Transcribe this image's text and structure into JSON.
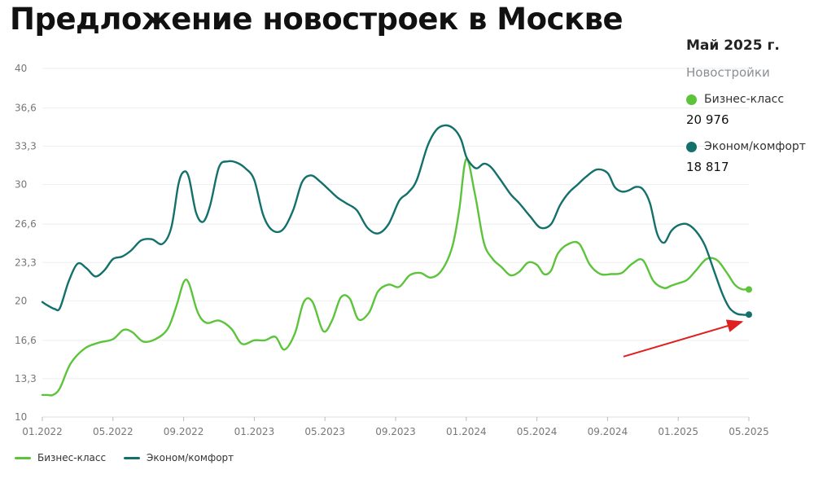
{
  "title": "Предложение новостроек в Москве",
  "side_panel": {
    "period": "Май 2025 г.",
    "subtitle": "Новостройки",
    "entries": [
      {
        "label": "Бизнес-класс",
        "value": "20 976"
      },
      {
        "label": "Эконом/комфорт",
        "value": "18 817"
      }
    ]
  },
  "colors": {
    "business": "#5cc43a",
    "economy": "#13706b",
    "arrow": "#e02020",
    "grid": "#eeeeee"
  },
  "chart_data": {
    "type": "line",
    "title": "Предложение новостроек в Москве",
    "xlabel": "",
    "ylabel": "",
    "x_ticks": [
      "01.2022",
      "05.2022",
      "09.2022",
      "01.2023",
      "05.2023",
      "09.2023",
      "01.2024",
      "05.2024",
      "09.2024",
      "01.2025",
      "05.2025"
    ],
    "x_tick_positions": [
      0,
      4,
      8,
      12,
      16,
      20,
      24,
      28,
      32,
      36,
      40
    ],
    "y_ticks": [
      "10",
      "13,3",
      "16,6",
      "20",
      "23,3",
      "26,6",
      "30",
      "33,3",
      "36,6",
      "40"
    ],
    "y_tick_values": [
      10,
      13.3,
      16.6,
      20,
      23.3,
      26.6,
      30,
      33.3,
      36.6,
      40
    ],
    "ylim": [
      10,
      40
    ],
    "xlim": [
      0,
      40
    ],
    "grid": "horizontal",
    "legend": "bottom-left",
    "series": [
      {
        "name": "Бизнес-класс",
        "color": "#5cc43a",
        "x": [
          0,
          0.3,
          0.6,
          1,
          1.6,
          2.4,
          3.2,
          4,
          4.6,
          5.1,
          5.7,
          6.4,
          7.1,
          7.6,
          8,
          8.3,
          8.8,
          9.3,
          10,
          10.7,
          11.3,
          12,
          12.6,
          13.2,
          13.7,
          14.3,
          14.8,
          15.3,
          15.9,
          16.4,
          16.9,
          17.4,
          17.9,
          18.5,
          19,
          19.6,
          20.2,
          20.8,
          21.4,
          22,
          22.6,
          23.2,
          23.6,
          24,
          24.5,
          25,
          25.5,
          26,
          26.5,
          27,
          27.5,
          28,
          28.4,
          28.8,
          29.2,
          29.8,
          30.4,
          31,
          31.6,
          32.2,
          32.8,
          33.4,
          34,
          34.6,
          35.2,
          35.6,
          36,
          36.5,
          37,
          37.6,
          38.2,
          38.8,
          39.2,
          39.6,
          40
        ],
        "y": [
          11.9,
          11.9,
          11.9,
          12.5,
          14.6,
          15.9,
          16.4,
          16.7,
          17.5,
          17.3,
          16.5,
          16.7,
          17.6,
          19.6,
          21.6,
          21.5,
          19.0,
          18.1,
          18.3,
          17.6,
          16.3,
          16.6,
          16.6,
          16.9,
          15.8,
          17.2,
          19.9,
          19.9,
          17.4,
          18.3,
          20.3,
          20.2,
          18.4,
          19.0,
          20.8,
          21.4,
          21.2,
          22.2,
          22.4,
          22.0,
          22.6,
          24.6,
          27.8,
          32.2,
          29.1,
          25.0,
          23.6,
          22.9,
          22.2,
          22.5,
          23.3,
          23.1,
          22.3,
          22.6,
          24.1,
          24.9,
          24.9,
          23.1,
          22.3,
          22.3,
          22.4,
          23.2,
          23.5,
          21.7,
          21.1,
          21.3,
          21.5,
          21.8,
          22.6,
          23.6,
          23.5,
          22.3,
          21.4,
          21.0,
          21.0
        ]
      },
      {
        "name": "Эконом/комфорт",
        "color": "#13706b",
        "x": [
          0,
          0.3,
          0.7,
          1,
          1.5,
          2,
          2.5,
          3,
          3.5,
          4,
          4.5,
          5,
          5.6,
          6.2,
          6.8,
          7.3,
          7.7,
          8,
          8.3,
          8.7,
          9.1,
          9.5,
          10,
          10.5,
          11,
          11.5,
          12,
          12.5,
          13,
          13.6,
          14.2,
          14.7,
          15.2,
          15.7,
          16.2,
          16.7,
          17.2,
          17.8,
          18.4,
          19,
          19.6,
          20.2,
          20.7,
          21.2,
          21.8,
          22.3,
          22.8,
          23.3,
          23.7,
          24,
          24.3,
          24.6,
          25,
          25.4,
          25.9,
          26.5,
          27,
          27.6,
          28.2,
          28.8,
          29.3,
          29.8,
          30.3,
          30.8,
          31.4,
          32,
          32.4,
          32.8,
          33.2,
          33.6,
          34,
          34.4,
          34.8,
          35.2,
          35.6,
          36,
          36.5,
          37,
          37.5,
          38,
          38.5,
          38.9,
          39.3,
          39.7,
          40
        ],
        "y": [
          19.9,
          19.6,
          19.3,
          19.4,
          21.7,
          23.2,
          22.8,
          22.1,
          22.6,
          23.6,
          23.8,
          24.3,
          25.2,
          25.3,
          24.9,
          26.3,
          30.0,
          31.1,
          30.6,
          27.6,
          26.8,
          28.2,
          31.5,
          32.0,
          31.9,
          31.4,
          30.4,
          27.4,
          26.1,
          26.1,
          27.8,
          30.2,
          30.8,
          30.3,
          29.6,
          28.9,
          28.4,
          27.8,
          26.3,
          25.8,
          26.6,
          28.6,
          29.3,
          30.4,
          33.3,
          34.7,
          35.1,
          34.8,
          33.9,
          32.4,
          31.7,
          31.4,
          31.8,
          31.5,
          30.5,
          29.2,
          28.4,
          27.3,
          26.3,
          26.6,
          28.2,
          29.3,
          30.0,
          30.7,
          31.3,
          31.0,
          29.8,
          29.4,
          29.5,
          29.8,
          29.6,
          28.4,
          25.8,
          25.0,
          26.0,
          26.5,
          26.6,
          26.0,
          24.8,
          22.7,
          20.6,
          19.4,
          18.9,
          18.8,
          18.8
        ]
      }
    ],
    "end_points": [
      {
        "series": "Бизнес-класс",
        "x": 40,
        "y": 20.976
      },
      {
        "series": "Эконом/комфорт",
        "x": 40,
        "y": 18.817
      }
    ],
    "annotations": [
      {
        "type": "arrow",
        "from": {
          "x": 32.9,
          "y": 15.2
        },
        "to": {
          "x": 39.6,
          "y": 18.2
        }
      }
    ]
  }
}
